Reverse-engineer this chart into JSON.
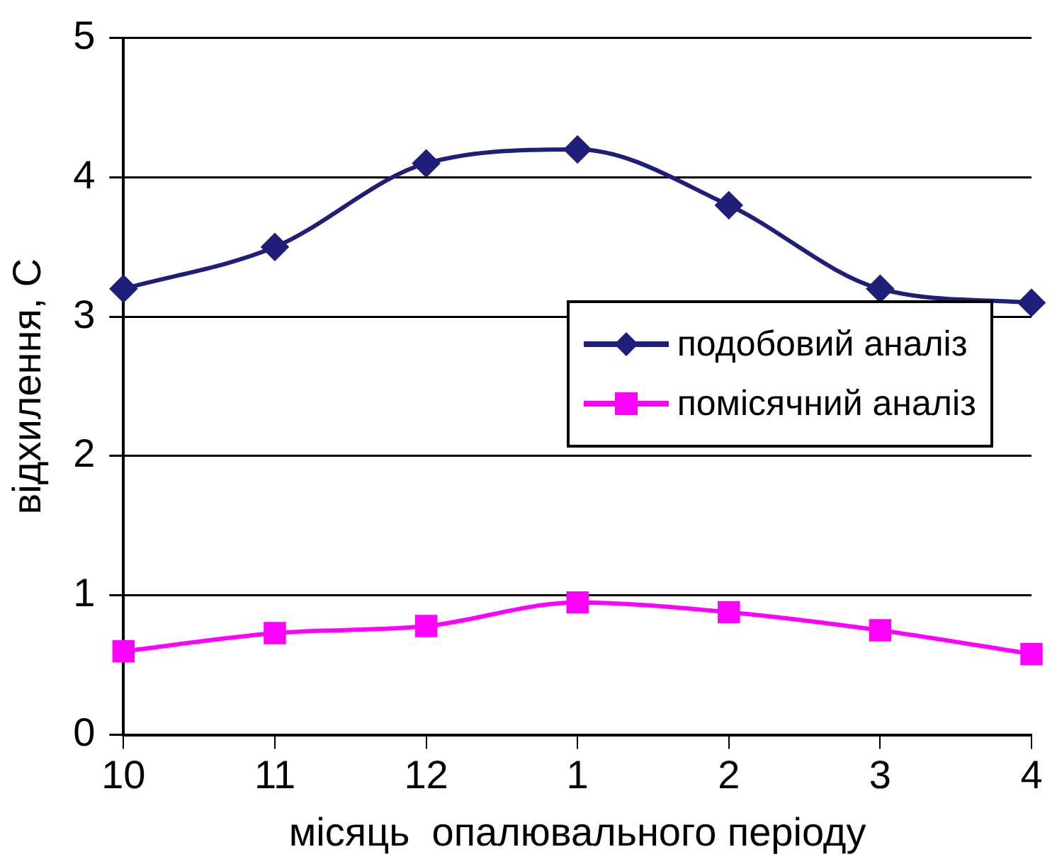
{
  "chart_data": {
    "type": "line",
    "xlabel": "місяць  опалювального періоду",
    "ylabel": "відхилення, С",
    "categories": [
      "10",
      "11",
      "12",
      "1",
      "2",
      "3",
      "4"
    ],
    "series": [
      {
        "name": "подобовий аналіз",
        "color": "#1f1f7a",
        "marker": "diamond",
        "values": [
          3.2,
          3.5,
          4.1,
          4.2,
          3.8,
          3.2,
          3.1
        ]
      },
      {
        "name": "помісячний аналіз",
        "color": "#ff00ff",
        "marker": "square",
        "values": [
          0.6,
          0.73,
          0.78,
          0.95,
          0.88,
          0.75,
          0.58
        ]
      }
    ],
    "ylim": [
      0,
      5
    ],
    "yticks": [
      0,
      1,
      2,
      3,
      4,
      5
    ],
    "grid": "y",
    "legend": "right"
  }
}
